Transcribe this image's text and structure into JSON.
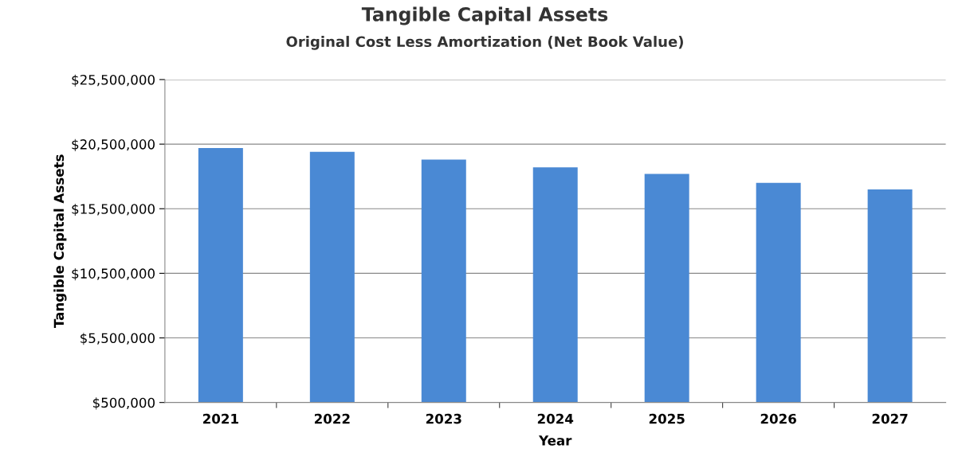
{
  "chart_data": {
    "type": "bar",
    "title": "Tangible Capital Assets",
    "subtitle": "Original Cost Less Amortization (Net Book Value)",
    "xlabel": "Year",
    "ylabel": "Tangible Capital Assets",
    "categories": [
      "2021",
      "2022",
      "2023",
      "2024",
      "2025",
      "2026",
      "2027"
    ],
    "values": [
      20200000,
      19900000,
      19300000,
      18700000,
      18200000,
      17500000,
      17000000
    ],
    "color": "#4a89d4",
    "ylim": [
      500000,
      25500000
    ],
    "yticks": [
      {
        "value": 500000,
        "label": "$500,000"
      },
      {
        "value": 5500000,
        "label": "$5,500,000"
      },
      {
        "value": 10500000,
        "label": "$10,500,000"
      },
      {
        "value": 15500000,
        "label": "$15,500,000"
      },
      {
        "value": 20500000,
        "label": "$20,500,000"
      },
      {
        "value": 25500000,
        "label": "$25,500,000"
      }
    ],
    "grid": "y",
    "legend": false
  }
}
